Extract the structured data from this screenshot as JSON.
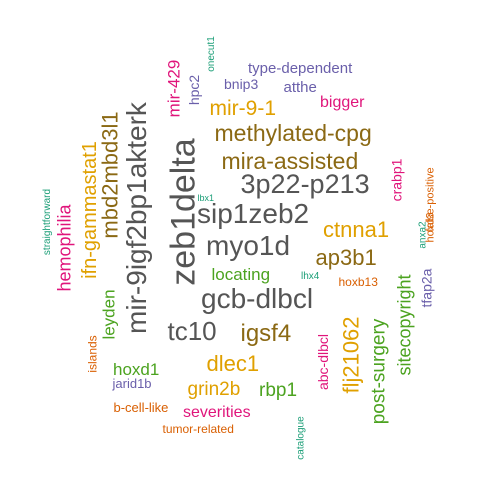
{
  "palette": {
    "gray": "#555555",
    "olive": "#8B6914",
    "gold": "#E0A000",
    "green": "#4CA320",
    "magenta": "#E0157B",
    "purple": "#6A5FAA",
    "orange": "#D95F02",
    "teal": "#1B9E77"
  },
  "words": [
    {
      "text": "zeb1delta",
      "color": "gray",
      "rotated": true
    },
    {
      "text": "mir-9igf2bp1akterk",
      "color": "gray",
      "rotated": true
    },
    {
      "text": "myo1d",
      "color": "gray",
      "rotated": false
    },
    {
      "text": "3p22-p213",
      "color": "gray",
      "rotated": false
    },
    {
      "text": "sip1zeb2",
      "color": "gray",
      "rotated": false
    },
    {
      "text": "gcb-dlbcl",
      "color": "gray",
      "rotated": false
    },
    {
      "text": "tc10",
      "color": "gray",
      "rotated": false
    },
    {
      "text": "methylated-cpg",
      "color": "olive",
      "rotated": false
    },
    {
      "text": "mira-assisted",
      "color": "olive",
      "rotated": false
    },
    {
      "text": "mbd2mbd3l1",
      "color": "olive",
      "rotated": true
    },
    {
      "text": "ap3b1",
      "color": "olive",
      "rotated": false
    },
    {
      "text": "igsf4",
      "color": "olive",
      "rotated": false
    },
    {
      "text": "ifn-gammastat1",
      "color": "gold",
      "rotated": true
    },
    {
      "text": "mir-9-1",
      "color": "gold",
      "rotated": false
    },
    {
      "text": "ctnna1",
      "color": "gold",
      "rotated": false
    },
    {
      "text": "dlec1",
      "color": "gold",
      "rotated": false
    },
    {
      "text": "flj21062",
      "color": "gold",
      "rotated": true
    },
    {
      "text": "grin2b",
      "color": "gold",
      "rotated": false
    },
    {
      "text": "locating",
      "color": "green",
      "rotated": false
    },
    {
      "text": "leyden",
      "color": "green",
      "rotated": true
    },
    {
      "text": "hoxd1",
      "color": "green",
      "rotated": false
    },
    {
      "text": "rbp1",
      "color": "green",
      "rotated": false
    },
    {
      "text": "post-surgery",
      "color": "green",
      "rotated": true
    },
    {
      "text": "sitecopyright",
      "color": "green",
      "rotated": true
    },
    {
      "text": "hemophilia",
      "color": "magenta",
      "rotated": true
    },
    {
      "text": "mir-429",
      "color": "magenta",
      "rotated": true
    },
    {
      "text": "bigger",
      "color": "magenta",
      "rotated": false
    },
    {
      "text": "severities",
      "color": "magenta",
      "rotated": false
    },
    {
      "text": "abc-dlbcl",
      "color": "magenta",
      "rotated": true
    },
    {
      "text": "crabp1",
      "color": "magenta",
      "rotated": true
    },
    {
      "text": "type-dependent",
      "color": "purple",
      "rotated": false
    },
    {
      "text": "bnip3",
      "color": "purple",
      "rotated": false
    },
    {
      "text": "atthe",
      "color": "purple",
      "rotated": false
    },
    {
      "text": "hpc2",
      "color": "purple",
      "rotated": true
    },
    {
      "text": "jarid1b",
      "color": "purple",
      "rotated": false
    },
    {
      "text": "tfap2a",
      "color": "purple",
      "rotated": true
    },
    {
      "text": "islands",
      "color": "orange",
      "rotated": true
    },
    {
      "text": "b-cell-like",
      "color": "orange",
      "rotated": false
    },
    {
      "text": "tumor-related",
      "color": "orange",
      "rotated": false
    },
    {
      "text": "hoxb13",
      "color": "orange",
      "rotated": false
    },
    {
      "text": "false-positive",
      "color": "orange",
      "rotated": true
    },
    {
      "text": "hoxd3",
      "color": "orange",
      "rotated": true
    },
    {
      "text": "onecut1",
      "color": "teal",
      "rotated": true
    },
    {
      "text": "straightforward",
      "color": "teal",
      "rotated": true
    },
    {
      "text": "lbx1",
      "color": "teal",
      "rotated": false
    },
    {
      "text": "lhx4",
      "color": "teal",
      "rotated": false
    },
    {
      "text": "anxa2",
      "color": "teal",
      "rotated": true
    },
    {
      "text": "catalogue",
      "color": "teal",
      "rotated": true
    }
  ]
}
